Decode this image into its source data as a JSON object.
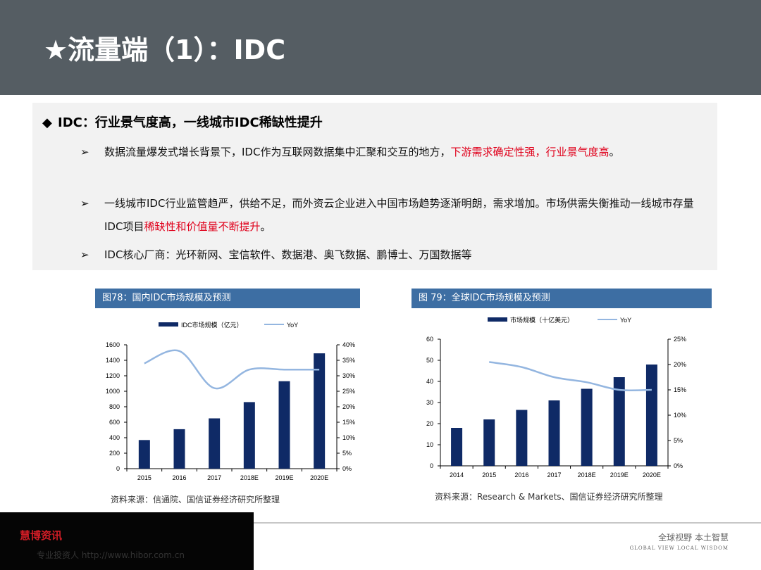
{
  "header": {
    "title": "★流量端（1）：IDC"
  },
  "content": {
    "heading_bullet": "◆",
    "heading": "IDC：行业景气度高，一线城市IDC稀缺性提升",
    "bullets": [
      {
        "arrow": "➢",
        "plain": "数据流量爆发式增长背景下，IDC作为互联网数据集中汇聚和交互的地方，",
        "red": "下游需求确定性强，行业景气度高",
        "end": "。"
      },
      {
        "arrow": "➢",
        "plain": "一线城市IDC行业监管趋严，供给不足，而外资云企业进入中国市场趋势逐渐明朗，需求增加。市场供需失衡推动一线城市存量IDC项目",
        "red": "稀缺性和价值量不断提升",
        "end": "。"
      },
      {
        "arrow": "➢",
        "plain": "IDC核心厂商：光环新网、宝信软件、数据港、奥飞数据、鹏博士、万国数据等",
        "red": "",
        "end": ""
      }
    ]
  },
  "chart_headers": {
    "left": "图78：国内IDC市场规模及预测",
    "right": "图 79：全球IDC市场规模及预测"
  },
  "sources": {
    "left": "资料来源：信通院、国信证券经济研究所整理",
    "right": "资料来源：Research & Markets、国信证券经济研究所整理"
  },
  "footer": {
    "logo": "慧博资讯",
    "url": "专业投资人    http://www.hibor.com.cn",
    "slogan": "全球视野  本土智慧",
    "slogan_en": "GLOBAL VIEW  LOCAL WISDOM"
  },
  "colors": {
    "bar": "#0f2a66",
    "line": "#94b6e0",
    "header": "#3d6ea3",
    "red": "#e0001b"
  },
  "chart_data": [
    {
      "type": "bar",
      "categories": [
        "2015",
        "2016",
        "2017",
        "2018E",
        "2019E",
        "2020E"
      ],
      "series": [
        {
          "name": "IDC市场规模（亿元）",
          "type": "bar",
          "axis": "left",
          "values": [
            370,
            510,
            650,
            860,
            1130,
            1490
          ]
        },
        {
          "name": "YoY",
          "type": "line",
          "axis": "right",
          "values": [
            34,
            38,
            26,
            32,
            32,
            32
          ]
        }
      ],
      "ylim_left": [
        0,
        1600
      ],
      "yticks_left": [
        "0",
        "200",
        "400",
        "600",
        "800",
        "1000",
        "1200",
        "1400",
        "1600"
      ],
      "ylim_right": [
        0,
        40
      ],
      "yticks_right": [
        "0%",
        "5%",
        "10%",
        "15%",
        "20%",
        "25%",
        "30%",
        "35%",
        "40%"
      ]
    },
    {
      "type": "bar",
      "categories": [
        "2014",
        "2015",
        "2016",
        "2017",
        "2018E",
        "2019E",
        "2020E"
      ],
      "series": [
        {
          "name": "市场规模（十亿美元）",
          "type": "bar",
          "axis": "left",
          "values": [
            18,
            22,
            26.5,
            31,
            36.5,
            42,
            48
          ]
        },
        {
          "name": "YoY",
          "type": "line",
          "axis": "right",
          "values": [
            null,
            20.5,
            19.5,
            17.5,
            16.5,
            15,
            15
          ]
        }
      ],
      "ylim_left": [
        0,
        60
      ],
      "yticks_left": [
        "0",
        "10",
        "20",
        "30",
        "40",
        "50",
        "60"
      ],
      "ylim_right": [
        0,
        25
      ],
      "yticks_right": [
        "0%",
        "5%",
        "10%",
        "15%",
        "20%",
        "25%"
      ]
    }
  ]
}
